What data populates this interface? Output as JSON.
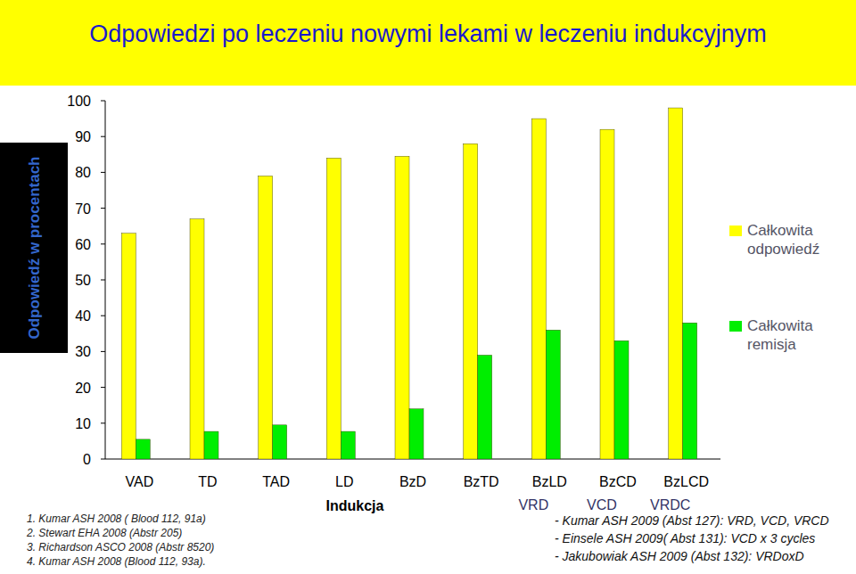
{
  "chart_data": {
    "type": "bar",
    "title": "Odpowiedzi po leczeniu nowymi lekami w leczeniu indukcyjnym",
    "y_label": "Odpowiedź w procentach",
    "x_label": "Indukcja",
    "categories": [
      "VAD",
      "TD",
      "TAD",
      "LD",
      "BzD",
      "BzTD",
      "BzLD",
      "BzCD",
      "BzLCD"
    ],
    "category_sublabels": [
      null,
      null,
      null,
      null,
      null,
      null,
      "VRD",
      "VCD",
      "VRDC"
    ],
    "series": [
      {
        "name": "Całkowita odpowiedź",
        "color": "#ffff00",
        "values": [
          63,
          67,
          79,
          84,
          84.5,
          88,
          95,
          92,
          98
        ]
      },
      {
        "name": "Całkowita remisja",
        "color": "#00ee00",
        "values": [
          5.5,
          7.7,
          9.5,
          7.7,
          14,
          29,
          36,
          33,
          38
        ]
      }
    ],
    "ylim": [
      0,
      100
    ],
    "yticks": [
      0,
      10,
      20,
      30,
      40,
      50,
      60,
      70,
      80,
      90,
      100
    ],
    "grid": false,
    "legend": "right",
    "references_left": [
      "1. Kumar ASH 2008 ( Blood 112, 91a)",
      "2. Stewart EHA 2008 (Abstr 205)",
      "3. Richardson ASCO 2008 (Abstr 8520)",
      "4. Kumar ASH 2008 (Blood 112, 93a)."
    ],
    "references_right": [
      "- Kumar ASH 2009 (Abst 127): VRD, VCD, VRCD",
      "- Einsele ASH 2009( Abst 131):  VCD x 3 cycles",
      "- Jakubowiak ASH 2009 (Abst 132): VRDoxD"
    ]
  }
}
